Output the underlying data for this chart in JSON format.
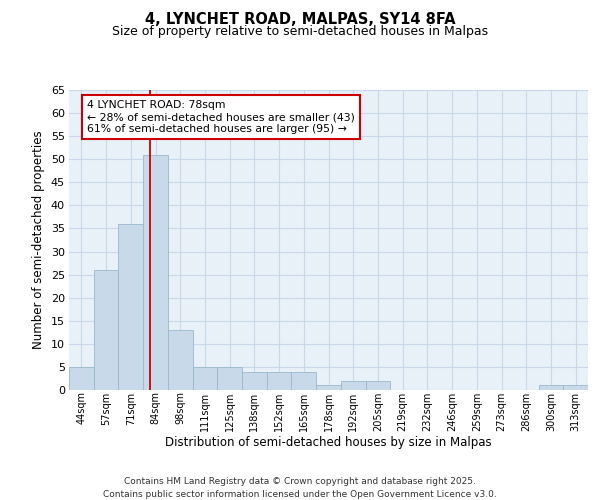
{
  "title": "4, LYNCHET ROAD, MALPAS, SY14 8FA",
  "subtitle": "Size of property relative to semi-detached houses in Malpas",
  "xlabel": "Distribution of semi-detached houses by size in Malpas",
  "ylabel": "Number of semi-detached properties",
  "bins": [
    "44sqm",
    "57sqm",
    "71sqm",
    "84sqm",
    "98sqm",
    "111sqm",
    "125sqm",
    "138sqm",
    "152sqm",
    "165sqm",
    "178sqm",
    "192sqm",
    "205sqm",
    "219sqm",
    "232sqm",
    "246sqm",
    "259sqm",
    "273sqm",
    "286sqm",
    "300sqm",
    "313sqm"
  ],
  "values": [
    5,
    26,
    36,
    51,
    13,
    5,
    5,
    4,
    4,
    4,
    1,
    2,
    2,
    0,
    0,
    0,
    0,
    0,
    0,
    1,
    1
  ],
  "bar_color": "#c8daea",
  "bar_edge_color": "#9ab8cc",
  "red_line_x": 2.77,
  "annotation_line1": "4 LYNCHET ROAD: 78sqm",
  "annotation_line2": "← 28% of semi-detached houses are smaller (43)",
  "annotation_line3": "61% of semi-detached houses are larger (95) →",
  "annotation_box_facecolor": "#ffffff",
  "annotation_box_edgecolor": "#cc0000",
  "ylim": [
    0,
    65
  ],
  "yticks": [
    0,
    5,
    10,
    15,
    20,
    25,
    30,
    35,
    40,
    45,
    50,
    55,
    60,
    65
  ],
  "footer_line1": "Contains HM Land Registry data © Crown copyright and database right 2025.",
  "footer_line2": "Contains public sector information licensed under the Open Government Licence v3.0.",
  "fig_facecolor": "#ffffff",
  "axes_facecolor": "#e8f0f8",
  "grid_color": "#c8d8e8"
}
